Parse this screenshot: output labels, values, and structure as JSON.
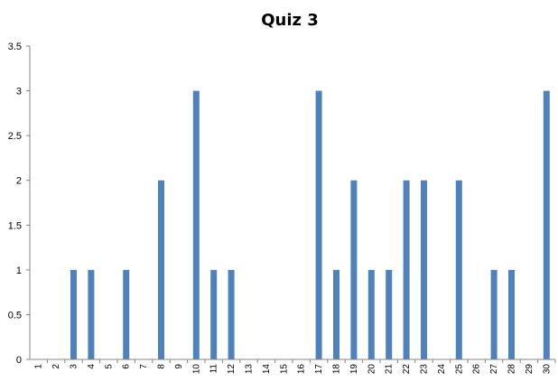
{
  "chart_data": {
    "type": "bar",
    "title": "Quiz 3",
    "xlabel": "",
    "ylabel": "",
    "categories": [
      "1",
      "2",
      "3",
      "4",
      "5",
      "6",
      "7",
      "8",
      "9",
      "10",
      "11",
      "12",
      "13",
      "14",
      "15",
      "16",
      "17",
      "18",
      "19",
      "20",
      "21",
      "22",
      "23",
      "24",
      "25",
      "26",
      "27",
      "28",
      "29",
      "30"
    ],
    "values": [
      0,
      0,
      1,
      1,
      0,
      1,
      0,
      2,
      0,
      3,
      1,
      1,
      0,
      0,
      0,
      0,
      3,
      1,
      2,
      1,
      1,
      2,
      2,
      0,
      2,
      0,
      1,
      1,
      0,
      3
    ],
    "ylim": [
      0,
      3.5
    ],
    "yticks": [
      "0",
      "0.5",
      "1",
      "1.5",
      "2",
      "2.5",
      "3",
      "3.5"
    ],
    "grid": false,
    "legend": "none",
    "colors": {
      "bar": "#4f81bd",
      "axis": "#868686"
    }
  }
}
